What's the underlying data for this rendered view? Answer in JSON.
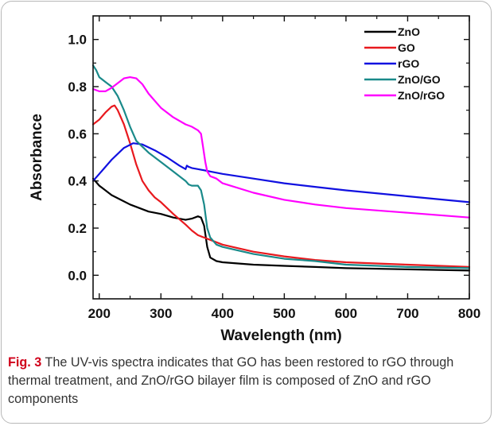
{
  "figure": {
    "label": "Fig. 3",
    "caption": "The UV-vis spectra indicates that GO has been restored to rGO through thermal treatment, and ZnO/rGO bilayer film is composed of ZnO and rGO components"
  },
  "chart_data": {
    "type": "line",
    "xlabel": "Wavelength (nm)",
    "ylabel": "Absorbance",
    "xlim": [
      190,
      800
    ],
    "ylim": [
      -0.1,
      1.1
    ],
    "xticks": [
      200,
      300,
      400,
      500,
      600,
      700,
      800
    ],
    "yticks": [
      0.0,
      0.2,
      0.4,
      0.6,
      0.8,
      1.0
    ],
    "xtick_labels": [
      "200",
      "300",
      "400",
      "500",
      "600",
      "700",
      "800"
    ],
    "ytick_labels": [
      "0.0",
      "0.2",
      "0.4",
      "0.6",
      "0.8",
      "1.0"
    ],
    "grid": false,
    "legend_position": "top-right",
    "series": [
      {
        "name": "ZnO",
        "color": "#000000",
        "x": [
          190,
          200,
          220,
          250,
          280,
          300,
          320,
          340,
          350,
          360,
          365,
          370,
          375,
          380,
          390,
          400,
          450,
          500,
          550,
          600,
          700,
          800
        ],
        "y": [
          0.41,
          0.38,
          0.34,
          0.3,
          0.27,
          0.26,
          0.245,
          0.235,
          0.24,
          0.25,
          0.245,
          0.21,
          0.12,
          0.075,
          0.06,
          0.055,
          0.045,
          0.04,
          0.035,
          0.03,
          0.025,
          0.02
        ]
      },
      {
        "name": "GO",
        "color": "#e8191e",
        "x": [
          190,
          200,
          210,
          220,
          225,
          230,
          240,
          250,
          260,
          270,
          280,
          290,
          300,
          320,
          340,
          350,
          360,
          370,
          380,
          400,
          450,
          500,
          550,
          600,
          700,
          800
        ],
        "y": [
          0.64,
          0.66,
          0.69,
          0.715,
          0.72,
          0.7,
          0.64,
          0.56,
          0.47,
          0.4,
          0.36,
          0.33,
          0.31,
          0.26,
          0.215,
          0.19,
          0.17,
          0.16,
          0.15,
          0.13,
          0.1,
          0.08,
          0.065,
          0.055,
          0.045,
          0.035
        ]
      },
      {
        "name": "rGO",
        "color": "#1010e0",
        "x": [
          190,
          200,
          220,
          240,
          255,
          270,
          290,
          310,
          330,
          340,
          342,
          345,
          350,
          360,
          380,
          400,
          450,
          500,
          550,
          600,
          700,
          800
        ],
        "y": [
          0.4,
          0.43,
          0.49,
          0.54,
          0.56,
          0.555,
          0.53,
          0.5,
          0.465,
          0.45,
          0.465,
          0.46,
          0.455,
          0.45,
          0.44,
          0.43,
          0.41,
          0.39,
          0.375,
          0.36,
          0.335,
          0.31
        ]
      },
      {
        "name": "ZnO/GO",
        "color": "#1a8a8a",
        "x": [
          190,
          195,
          200,
          210,
          220,
          230,
          240,
          250,
          260,
          280,
          300,
          320,
          340,
          345,
          350,
          360,
          365,
          370,
          375,
          380,
          390,
          400,
          450,
          500,
          550,
          600,
          700,
          800
        ],
        "y": [
          0.89,
          0.87,
          0.84,
          0.82,
          0.8,
          0.76,
          0.7,
          0.63,
          0.57,
          0.52,
          0.48,
          0.44,
          0.4,
          0.385,
          0.38,
          0.38,
          0.36,
          0.3,
          0.2,
          0.16,
          0.13,
          0.12,
          0.09,
          0.07,
          0.06,
          0.045,
          0.035,
          0.03
        ]
      },
      {
        "name": "ZnO/rGO",
        "color": "#ff00ff",
        "x": [
          190,
          200,
          210,
          220,
          230,
          240,
          250,
          260,
          270,
          280,
          300,
          320,
          340,
          350,
          360,
          365,
          368,
          372,
          375,
          380,
          390,
          400,
          450,
          500,
          550,
          600,
          700,
          800
        ],
        "y": [
          0.79,
          0.78,
          0.78,
          0.795,
          0.815,
          0.835,
          0.84,
          0.835,
          0.81,
          0.77,
          0.71,
          0.67,
          0.64,
          0.63,
          0.615,
          0.6,
          0.55,
          0.48,
          0.44,
          0.42,
          0.41,
          0.39,
          0.35,
          0.32,
          0.3,
          0.285,
          0.265,
          0.245
        ]
      }
    ]
  }
}
